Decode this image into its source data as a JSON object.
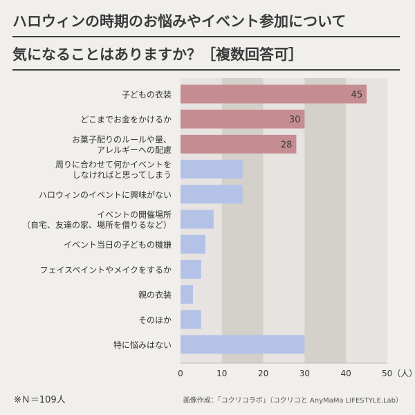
{
  "title": {
    "line1": "ハロウィンの時期のお悩みやイベント参加について",
    "line2": "気になることはありますか？［複数回答可］"
  },
  "chart_data": {
    "type": "bar",
    "orientation": "horizontal",
    "categories": [
      [
        "子どもの衣装"
      ],
      [
        "どこまでお金をかけるか"
      ],
      [
        "お菓子配りのルールや量、",
        "アレルギーへの配慮"
      ],
      [
        "周りに合わせて何かイベントを",
        "しなければと思ってしまう"
      ],
      [
        "ハロウィンのイベントに興味がない"
      ],
      [
        "イベントの開催場所",
        "（自宅、友達の家、場所を借りるなど）"
      ],
      [
        "イベント当日の子どもの機嫌"
      ],
      [
        "フェイスペイントやメイクをするか"
      ],
      [
        "親の衣装"
      ],
      [
        "そのほか"
      ],
      [
        "特に悩みはない"
      ]
    ],
    "values": [
      45,
      30,
      28,
      15,
      15,
      8,
      6,
      5,
      3,
      5,
      30
    ],
    "data_labels": [
      "45",
      "30",
      "28",
      "",
      "",
      "",
      "",
      "",
      "",
      "",
      ""
    ],
    "highlight_count": 3,
    "xlim": [
      0,
      50
    ],
    "xticks": [
      0,
      10,
      20,
      30,
      40,
      50
    ],
    "xtick_labels": [
      "0",
      "10",
      "20",
      "30",
      "40",
      "50（人）"
    ],
    "colors": {
      "highlight": "#c58d92",
      "normal": "#b4c2e8",
      "band_light": "#e6e3e1",
      "band_dark": "#d4d0ca"
    }
  },
  "footnote": "※Ｎ＝109人",
  "credit": "画像作成：「コクリコラボ」（コクリコと AnyMaMa LIFESTYLE.Lab）"
}
